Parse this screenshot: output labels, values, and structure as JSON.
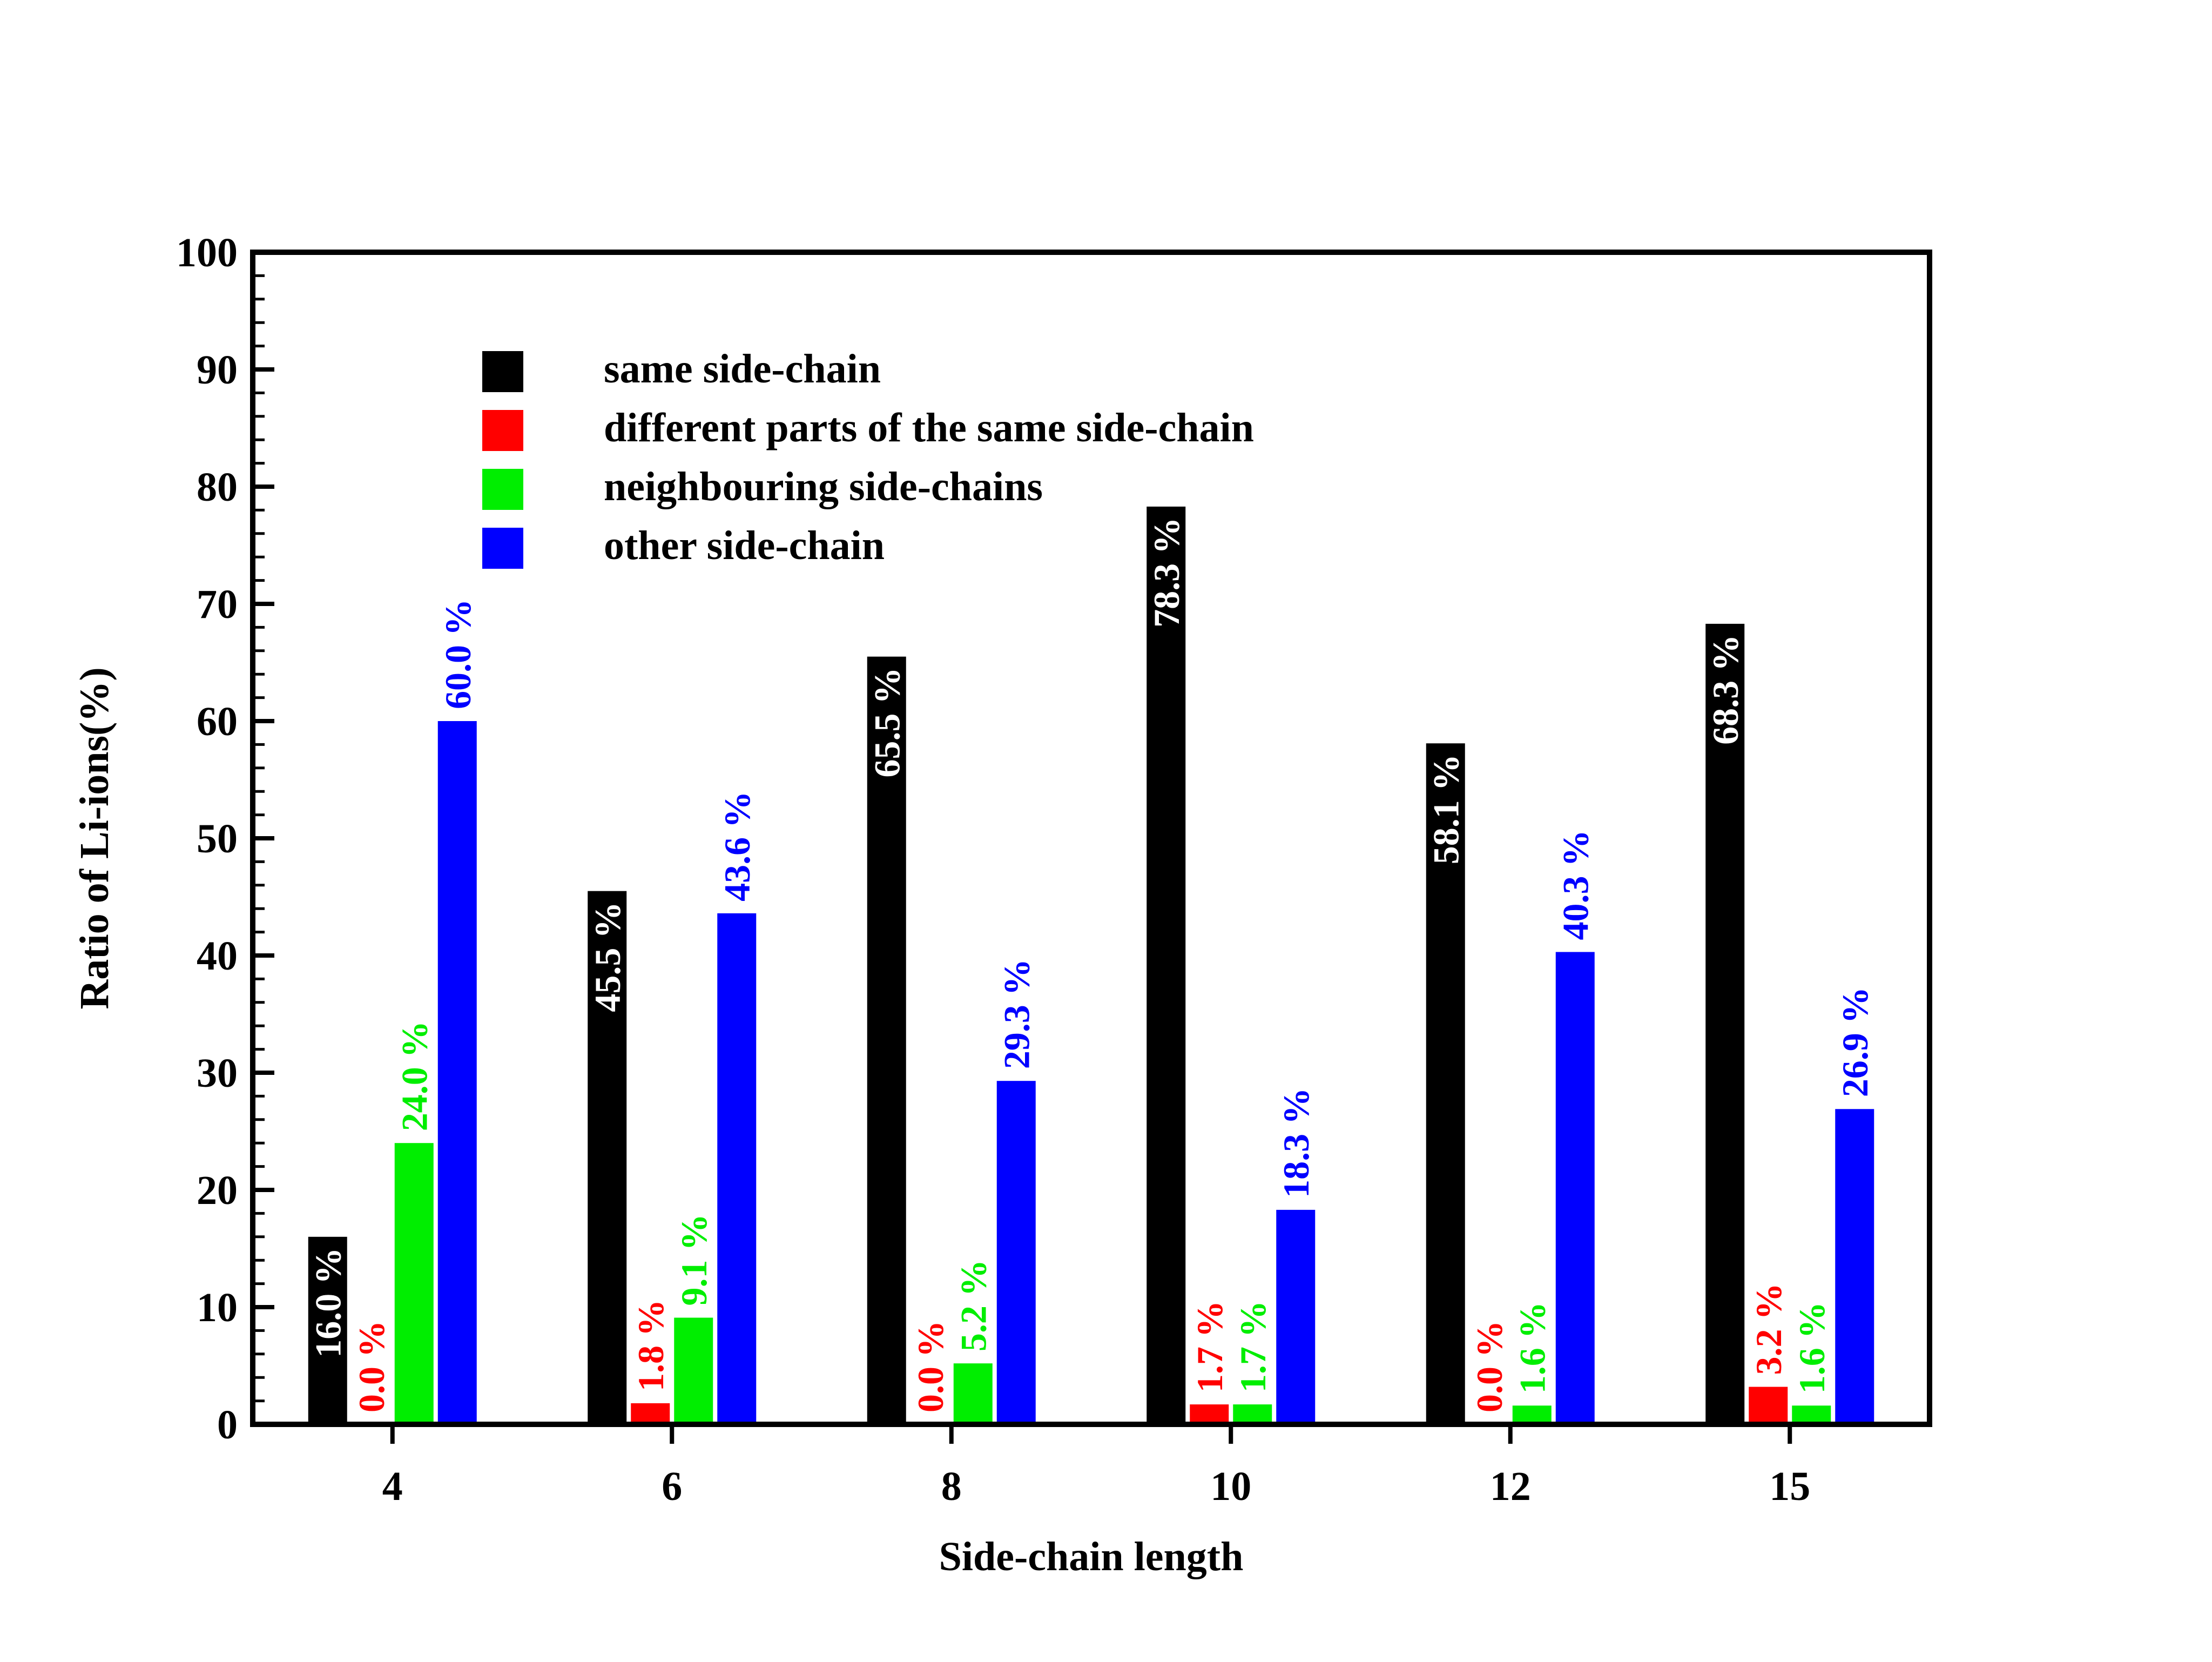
{
  "chart_data": {
    "type": "bar",
    "title": "",
    "xlabel": "Side-chain length",
    "ylabel": "Ratio of Li-ions(%)",
    "ylim": [
      0,
      100
    ],
    "yticks": [
      "0",
      "10",
      "20",
      "30",
      "40",
      "50",
      "60",
      "70",
      "80",
      "90",
      "100"
    ],
    "categories": [
      "4",
      "6",
      "8",
      "10",
      "12",
      "15"
    ],
    "legend_position": "top-left",
    "series": [
      {
        "name": "same side-chain",
        "color": "#000000",
        "label_color": "#ffffff",
        "values": [
          16.0,
          45.5,
          65.5,
          78.3,
          58.1,
          68.3
        ],
        "labels": [
          "16.0 %",
          "45.5 %",
          "65.5 %",
          "78.3 %",
          "58.1 %",
          "68.3 %"
        ]
      },
      {
        "name": "different parts of the same side-chain",
        "color": "#ff0000",
        "label_color": "#ff0000",
        "values": [
          0.0,
          1.8,
          0.0,
          1.7,
          0.0,
          3.2
        ],
        "labels": [
          "0.0 %",
          "1.8 %",
          "0.0 %",
          "1.7 %",
          "0.0 %",
          "3.2 %"
        ]
      },
      {
        "name": "neighbouring side-chains",
        "color": "#00ee00",
        "label_color": "#00ee00",
        "values": [
          24.0,
          9.1,
          5.2,
          1.7,
          1.6,
          1.6
        ],
        "labels": [
          "24.0 %",
          "9.1 %",
          "5.2 %",
          "1.7 %",
          "1.6 %",
          "1.6 %"
        ]
      },
      {
        "name": "other side-chain",
        "color": "#0000ff",
        "label_color": "#0000ff",
        "values": [
          60.0,
          43.6,
          29.3,
          18.3,
          40.3,
          26.9
        ],
        "labels": [
          "60.0 %",
          "43.6 %",
          "29.3 %",
          "18.3 %",
          "40.3 %",
          "26.9 %"
        ]
      }
    ]
  }
}
